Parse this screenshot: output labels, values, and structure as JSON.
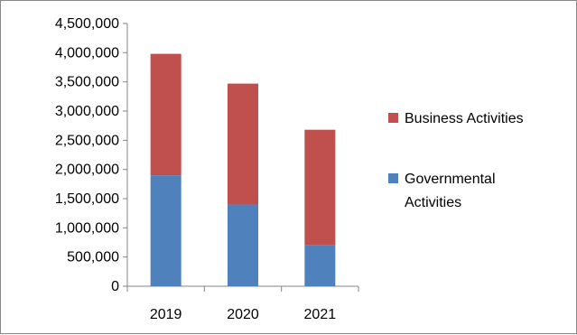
{
  "chart_data": {
    "type": "bar",
    "stacked": true,
    "categories": [
      "2019",
      "2020",
      "2021"
    ],
    "series": [
      {
        "name": "Governmental Activities",
        "values": [
          1900000,
          1400000,
          700000
        ],
        "color": "#4f81bd"
      },
      {
        "name": "Business Activities",
        "values": [
          2080000,
          2070000,
          1980000
        ],
        "color": "#c0504d"
      }
    ],
    "ylim": [
      0,
      4500000
    ],
    "yticks": [
      0,
      500000,
      1000000,
      1500000,
      2000000,
      2500000,
      3000000,
      3500000,
      4000000,
      4500000
    ],
    "ytick_labels": [
      "0",
      "500,000",
      "1,000,000",
      "1,500,000",
      "2,000,000",
      "2,500,000",
      "3,000,000",
      "3,500,000",
      "4,000,000",
      "4,500,000"
    ],
    "legend_order": [
      1,
      0
    ],
    "legend_lines": [
      [
        "Business Activities"
      ],
      [
        "Governmental",
        "Activities"
      ]
    ],
    "legend_position": "right",
    "grid": false,
    "title": "",
    "xlabel": "",
    "ylabel": ""
  }
}
